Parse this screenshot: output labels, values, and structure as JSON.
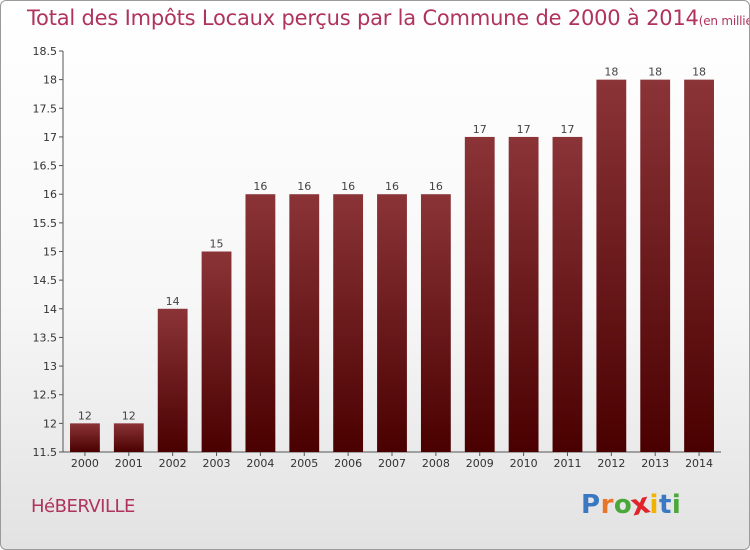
{
  "title": "Total des Impôts Locaux perçus par la Commune de 2000 à 2014",
  "title_unit": "(en milliers d'€)",
  "commune": "HéBERVILLE",
  "logo": {
    "text": "Proxiti",
    "letter_colors": [
      "#3a78c3",
      "#e8752a",
      "#4aa83a",
      "#e0242a",
      "#f0b400",
      "#3a78c3",
      "#4aa83a"
    ]
  },
  "chart_data": {
    "type": "bar",
    "categories": [
      "2000",
      "2001",
      "2002",
      "2003",
      "2004",
      "2005",
      "2006",
      "2007",
      "2008",
      "2009",
      "2010",
      "2011",
      "2012",
      "2013",
      "2014"
    ],
    "values": [
      12,
      12,
      14,
      15,
      16,
      16,
      16,
      16,
      16,
      17,
      17,
      17,
      18,
      18,
      18
    ],
    "data_labels": [
      "12",
      "12",
      "14",
      "15",
      "16",
      "16",
      "16",
      "16",
      "16",
      "17",
      "17",
      "17",
      "18",
      "18",
      "18"
    ],
    "yticks": [
      "11.5",
      "12",
      "12.5",
      "13",
      "13.5",
      "14",
      "14.5",
      "15",
      "15.5",
      "16",
      "16.5",
      "17",
      "17.5",
      "18",
      "18.5"
    ],
    "ylim": [
      11.5,
      18.5
    ],
    "grid": false,
    "bar_color_top": "#8b3438",
    "bar_color_bottom": "#4a0000"
  }
}
